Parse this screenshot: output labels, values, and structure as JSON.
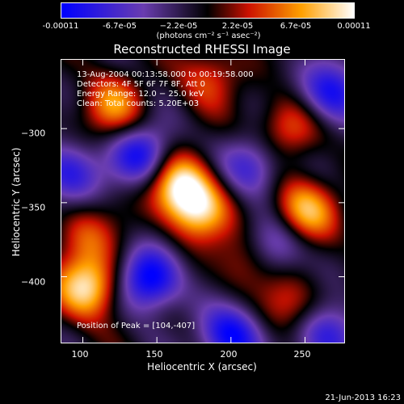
{
  "colorbar": {
    "ticks": [
      "-0.00011",
      "-6.7e-05",
      "−2.2e-05",
      "2.2e-05",
      "6.7e-05",
      "0.00011"
    ],
    "unit_label": "(photons cm⁻² s⁻¹ asec⁻²)",
    "colors": [
      "#0000ff",
      "#6a3db0",
      "#000000",
      "#cc1100",
      "#ffa000",
      "#ffffff"
    ]
  },
  "chart_data": {
    "type": "heatmap",
    "title": "Reconstructed RHESSI Image",
    "xlabel": "Heliocentric X (arcsec)",
    "ylabel": "Heliocentric Y (arcsec)",
    "xlim": [
      85,
      277
    ],
    "ylim": [
      -445,
      -253
    ],
    "x_ticks": [
      "100",
      "150",
      "200",
      "250"
    ],
    "y_ticks": [
      "−300",
      "−350",
      "−400"
    ],
    "value_range": [
      -0.00011,
      0.00011
    ],
    "annotations": [
      "13-Aug-2004 00:13:58.000 to 00:19:58.000",
      "Detectors: 4F 5F 6F 7F 8F, Att 0",
      "Energy Range: 12.0 − 25.0 keV",
      "Clean: Total counts: 5.20E+03"
    ],
    "peak_label": "Position of Peak = [104,-407]",
    "peak": [
      104,
      -407
    ],
    "sources": [
      {
        "x": 104,
        "y": -407,
        "value": 0.00011
      },
      {
        "x": 165,
        "y": -338,
        "value": 0.000105
      },
      {
        "x": 178,
        "y": -355,
        "value": 9e-05
      },
      {
        "x": 250,
        "y": -355,
        "value": 9e-05
      },
      {
        "x": 238,
        "y": -300,
        "value": 6e-05
      },
      {
        "x": 120,
        "y": -285,
        "value": 7e-05
      },
      {
        "x": 100,
        "y": -372,
        "value": 5e-05
      },
      {
        "x": 185,
        "y": -265,
        "value": 5e-05
      },
      {
        "x": 240,
        "y": -420,
        "value": 5e-05
      },
      {
        "x": 210,
        "y": -390,
        "value": 4.5e-05
      },
      {
        "x": 145,
        "y": -402,
        "value": -0.00011
      },
      {
        "x": 140,
        "y": -318,
        "value": -9e-05
      },
      {
        "x": 200,
        "y": -440,
        "value": -0.0001
      },
      {
        "x": 268,
        "y": -275,
        "value": -9e-05
      },
      {
        "x": 215,
        "y": -325,
        "value": -7e-05
      },
      {
        "x": 90,
        "y": -330,
        "value": -8e-05
      },
      {
        "x": 230,
        "y": -380,
        "value": -6e-05
      },
      {
        "x": 265,
        "y": -440,
        "value": -8e-05
      }
    ]
  },
  "timestamp": "21-Jun-2013 16:23"
}
